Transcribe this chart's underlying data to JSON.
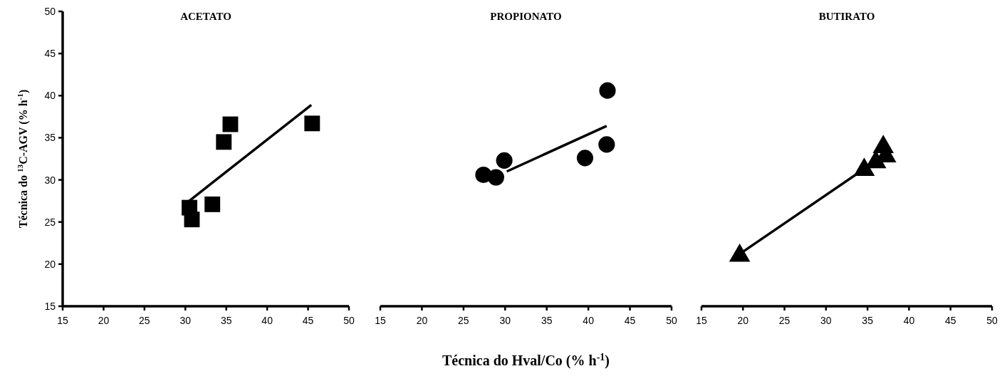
{
  "chart_data": [
    {
      "type": "scatter",
      "title": "ACETATO",
      "ylabel": "Técnica do $^{13}$C-AGV (% h$^{-1}$)",
      "xlim": [
        15,
        50
      ],
      "xticks": [
        15,
        20,
        25,
        30,
        35,
        40,
        45,
        50
      ],
      "ylim": [
        15,
        50
      ],
      "yticks": [
        15,
        20,
        25,
        30,
        35,
        40,
        45,
        50
      ],
      "grid": false,
      "series": [
        {
          "marker": "square",
          "color": "#000000",
          "x": [
            30.5,
            30.8,
            33.3,
            34.7,
            35.5,
            45.5
          ],
          "values": [
            26.7,
            25.3,
            27.1,
            34.5,
            36.6,
            36.7
          ]
        },
        {
          "type": "line",
          "marker": "none",
          "color": "#000000",
          "x": [
            30.2,
            45.4
          ],
          "values": [
            27.3,
            38.9
          ]
        }
      ]
    },
    {
      "type": "scatter",
      "title": "PROPIONATO",
      "xlabel": "Técnica do Hval/Co (% h$^{-1}$)",
      "xlim": [
        15,
        50
      ],
      "xticks": [
        15,
        20,
        25,
        30,
        35,
        40,
        45,
        50
      ],
      "ylim": [
        15,
        50
      ],
      "tick_labels": "x",
      "grid": false,
      "series": [
        {
          "marker": "circle",
          "color": "#000000",
          "x": [
            27.4,
            28.9,
            29.9,
            39.6,
            42.2,
            42.3
          ],
          "values": [
            30.6,
            30.3,
            32.3,
            32.6,
            34.2,
            40.6
          ]
        },
        {
          "type": "line",
          "marker": "none",
          "color": "#000000",
          "x": [
            30.2,
            42.2
          ],
          "values": [
            31.0,
            36.4
          ]
        }
      ]
    },
    {
      "type": "scatter",
      "title": "BUTIRATO",
      "xlim": [
        15,
        50
      ],
      "xticks": [
        15,
        20,
        25,
        30,
        35,
        40,
        45,
        50
      ],
      "ylim": [
        15,
        50
      ],
      "tick_labels": "x",
      "grid": false,
      "series": [
        {
          "marker": "triangle",
          "color": "#000000",
          "x": [
            19.6,
            34.6,
            36.0,
            36.9,
            37.2
          ],
          "values": [
            21.0,
            31.2,
            32.1,
            33.9,
            32.8
          ]
        },
        {
          "type": "line",
          "marker": "none",
          "color": "#000000",
          "x": [
            19.6,
            34.6
          ],
          "values": [
            21.2,
            31.3
          ]
        }
      ]
    }
  ]
}
